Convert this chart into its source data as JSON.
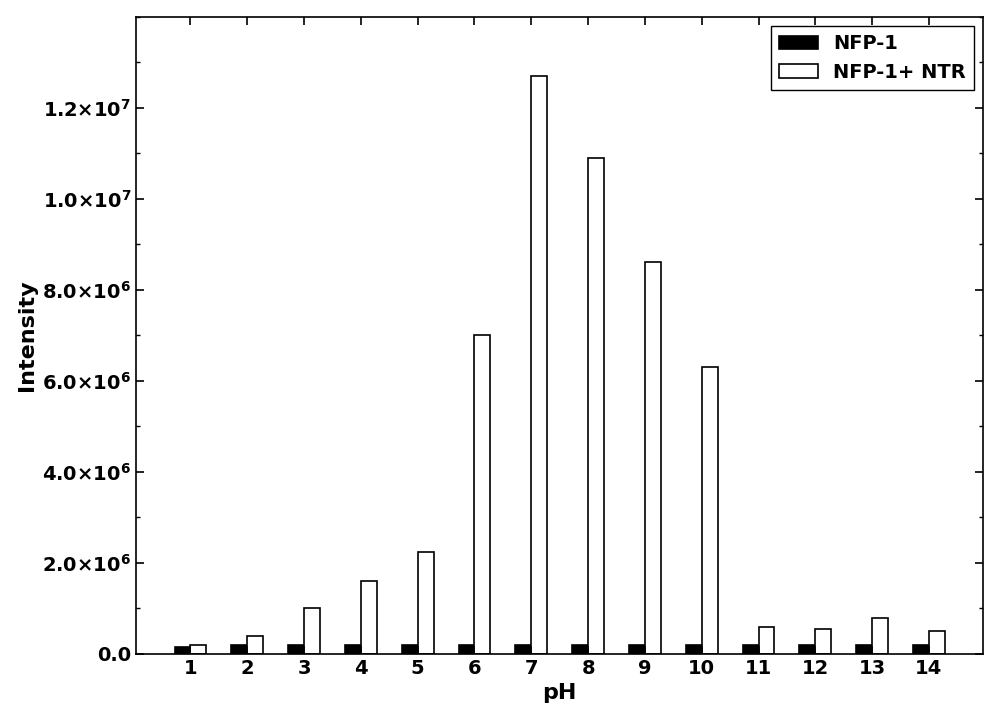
{
  "ph_values": [
    1,
    2,
    3,
    4,
    5,
    6,
    7,
    8,
    9,
    10,
    11,
    12,
    13,
    14
  ],
  "nfp1_values": [
    150000,
    200000,
    200000,
    200000,
    200000,
    200000,
    200000,
    200000,
    200000,
    200000,
    200000,
    200000,
    200000,
    200000
  ],
  "nfp1_ntr_values": [
    200000,
    400000,
    1000000,
    1600000,
    2250000,
    7000000,
    12700000,
    10900000,
    8600000,
    6300000,
    600000,
    550000,
    800000,
    500000
  ],
  "ylabel": "Intensity",
  "xlabel": "pH",
  "ylim": [
    0,
    14000000.0
  ],
  "yticks": [
    0.0,
    2000000,
    4000000,
    6000000,
    8000000,
    10000000,
    12000000
  ],
  "legend_labels": [
    "NFP-1",
    "NFP-1+ NTR"
  ],
  "bar_width": 0.28,
  "nfp1_color": "#000000",
  "nfp1_ntr_color": "#ffffff",
  "nfp1_ntr_edgecolor": "#000000",
  "background_color": "#ffffff",
  "ylabel_fontsize": 16,
  "xlabel_fontsize": 16,
  "tick_fontsize": 14,
  "legend_fontsize": 14
}
